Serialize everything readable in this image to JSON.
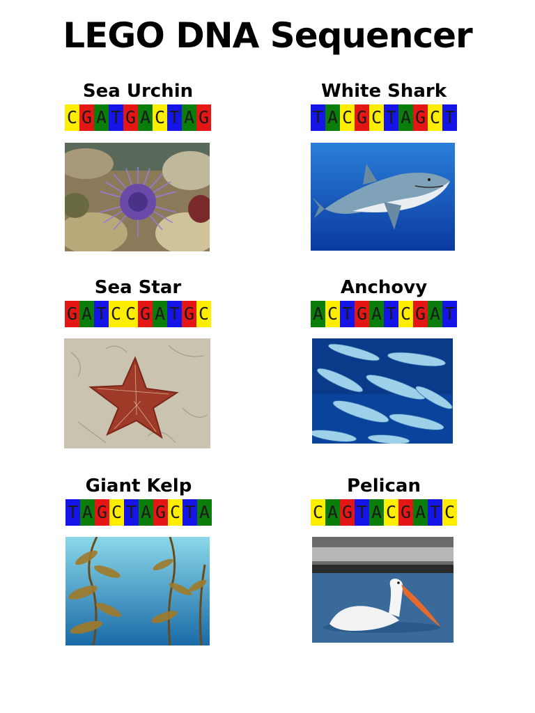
{
  "page": {
    "title": "LEGO DNA Sequencer"
  },
  "base_colors": {
    "A": "#0a7d0a",
    "C": "#ffee00",
    "G": "#e51616",
    "T": "#1515e8"
  },
  "organisms": [
    {
      "name": "Sea Urchin",
      "sequence": "CGATGACTAG",
      "image": "sea-urchin-photo"
    },
    {
      "name": "White Shark",
      "sequence": "TACGCTAGCT",
      "image": "white-shark-photo"
    },
    {
      "name": "Sea Star",
      "sequence": "GATCCGATGC",
      "image": "sea-star-photo"
    },
    {
      "name": "Anchovy",
      "sequence": "ACTGATCGAT",
      "image": "anchovy-photo"
    },
    {
      "name": "Giant Kelp",
      "sequence": "TAGCTAGCTA",
      "image": "giant-kelp-photo"
    },
    {
      "name": "Pelican",
      "sequence": "CAGTACGATC",
      "image": "pelican-photo"
    }
  ]
}
